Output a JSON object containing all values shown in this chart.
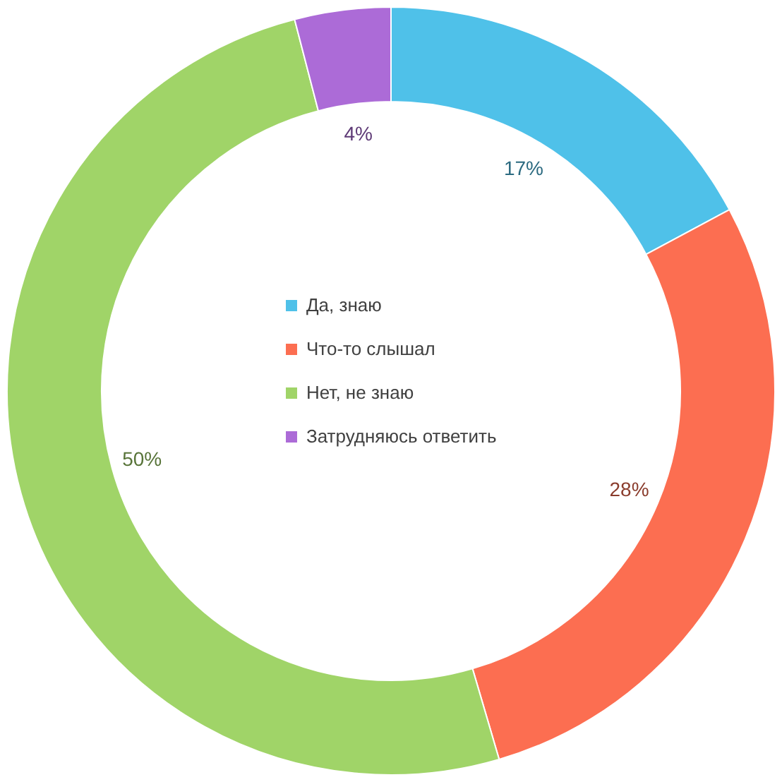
{
  "chart_data": {
    "type": "donut",
    "categories": [
      "Да, знаю",
      "Что-то слышал",
      "Нет, не знаю",
      "Затрудняюсь ответить"
    ],
    "values": [
      17,
      28,
      50,
      4
    ],
    "colors": [
      "#4fc1e9",
      "#fc6e51",
      "#a0d468",
      "#ac6bd7"
    ],
    "value_labels": [
      "17%",
      "28%",
      "50%",
      "4%"
    ],
    "legend": "center"
  }
}
